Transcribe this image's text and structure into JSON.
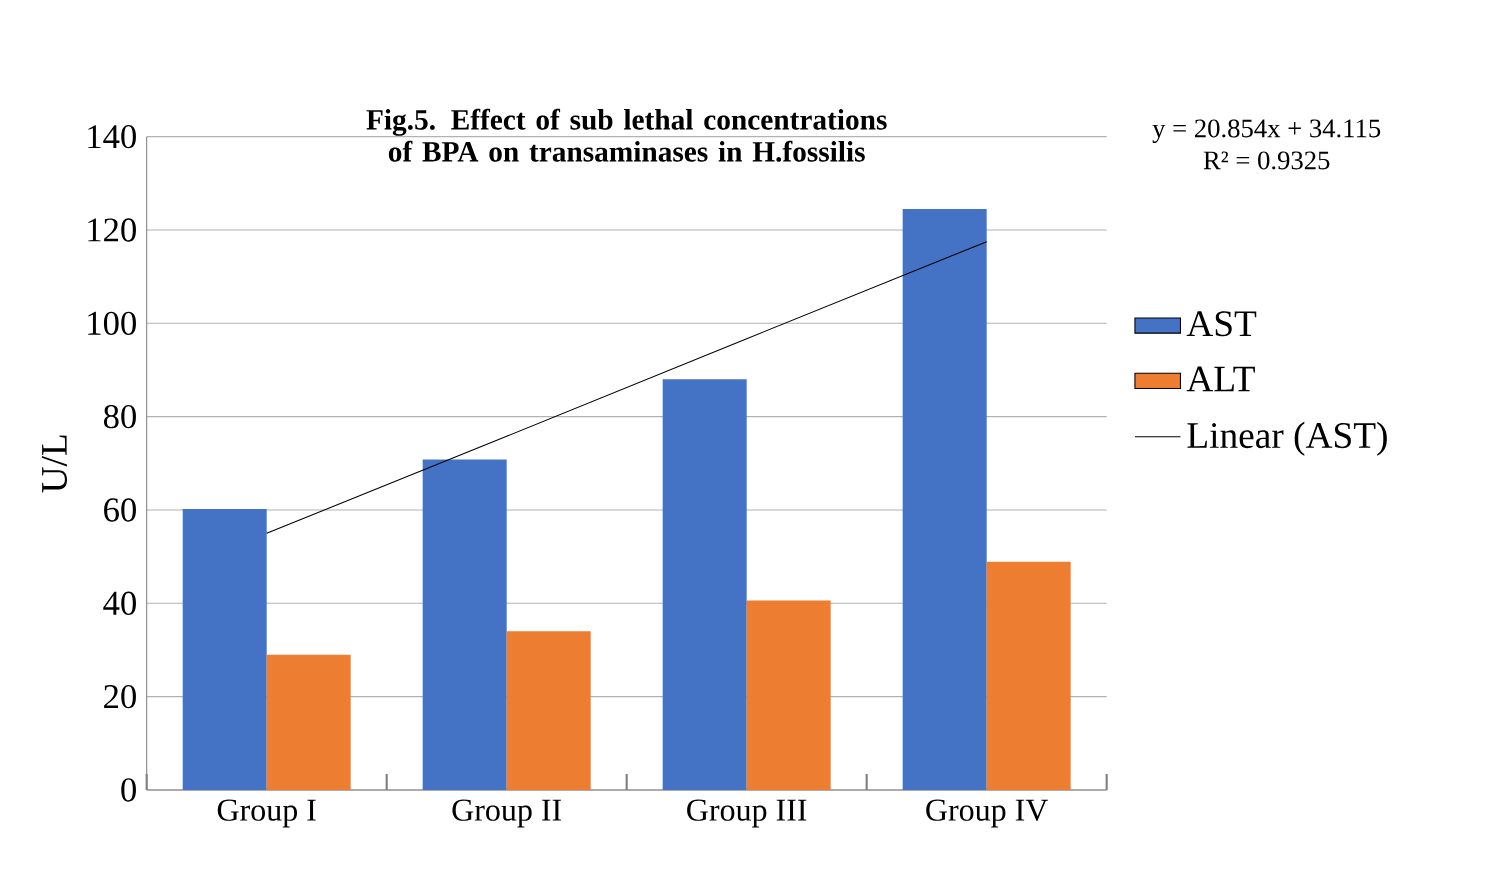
{
  "chart_data": {
    "type": "bar",
    "title": "Fig.5. Effect of sub lethal concentrations of BPA on transaminases in H.fossilis",
    "ylabel": "U/L",
    "categories": [
      "Group I",
      "Group II",
      "Group III",
      "Group IV"
    ],
    "series": [
      {
        "name": "AST",
        "color": "#4472c4",
        "values": [
          60.2,
          70.8,
          88,
          124.5
        ]
      },
      {
        "name": "ALT",
        "color": "#ed7d31",
        "values": [
          29,
          34,
          40.6,
          48.9
        ]
      },
      {
        "name": "Linear (AST)",
        "type": "line",
        "color": "#000000",
        "x": [
          "Group I",
          "Group II",
          "Group III",
          "Group IV"
        ],
        "values": [
          55.0,
          75.8,
          96.7,
          117.5
        ]
      }
    ],
    "annotations": [
      "y = 20.854x + 34.115",
      "R² = 0.9325"
    ],
    "ylim": [
      0,
      140
    ],
    "yticks": [
      0,
      20,
      40,
      60,
      80,
      100,
      120,
      140
    ],
    "grid": "y",
    "legend": "right"
  }
}
